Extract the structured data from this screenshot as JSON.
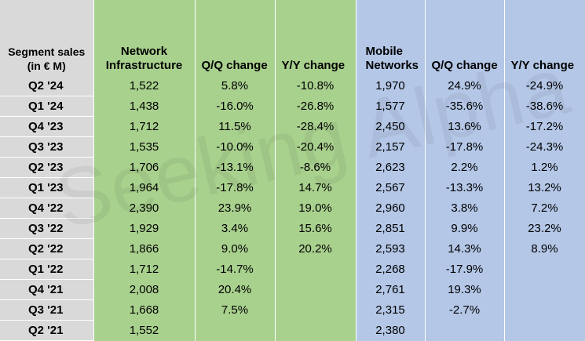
{
  "table": {
    "headers": {
      "segment": [
        "Segment sales",
        "(in € M)"
      ],
      "network": [
        "Network",
        "Infrastructure"
      ],
      "net_qq": "Q/Q change",
      "net_yy": "Y/Y change",
      "mobile": [
        "Mobile",
        "Networks"
      ],
      "mob_qq": "Q/Q change",
      "mob_yy": "Y/Y change"
    },
    "rows": [
      [
        "Q2 '24",
        "1,522",
        "5.8%",
        "-10.8%",
        "1,970",
        "24.9%",
        "-24.9%"
      ],
      [
        "Q1 '24",
        "1,438",
        "-16.0%",
        "-26.8%",
        "1,577",
        "-35.6%",
        "-38.6%"
      ],
      [
        "Q4 '23",
        "1,712",
        "11.5%",
        "-28.4%",
        "2,450",
        "13.6%",
        "-17.2%"
      ],
      [
        "Q3 '23",
        "1,535",
        "-10.0%",
        "-20.4%",
        "2,157",
        "-17.8%",
        "-24.3%"
      ],
      [
        "Q2 '23",
        "1,706",
        "-13.1%",
        "-8.6%",
        "2,623",
        "2.2%",
        "1.2%"
      ],
      [
        "Q1 '23",
        "1,964",
        "-17.8%",
        "14.7%",
        "2,567",
        "-13.3%",
        "13.2%"
      ],
      [
        "Q4 '22",
        "2,390",
        "23.9%",
        "19.0%",
        "2,960",
        "3.8%",
        "7.2%"
      ],
      [
        "Q3 '22",
        "1,929",
        "3.4%",
        "15.6%",
        "2,851",
        "9.9%",
        "23.2%"
      ],
      [
        "Q2 '22",
        "1,866",
        "9.0%",
        "20.2%",
        "2,593",
        "14.3%",
        "8.9%"
      ],
      [
        "Q1 '22",
        "1,712",
        "-14.7%",
        "",
        "2,268",
        "-17.9%",
        ""
      ],
      [
        "Q4 '21",
        "2,008",
        "20.4%",
        "",
        "2,761",
        "19.3%",
        ""
      ],
      [
        "Q3 '21",
        "1,668",
        "7.5%",
        "",
        "2,315",
        "-2.7%",
        ""
      ],
      [
        "Q2 '21",
        "1,552",
        "",
        "",
        "2,380",
        "",
        ""
      ]
    ],
    "colors": {
      "label_bg": "#d9d9d9",
      "network_bg": "#a9d18e",
      "mobile_bg": "#b4c7e7"
    }
  },
  "watermark": "Seeking Alpha"
}
